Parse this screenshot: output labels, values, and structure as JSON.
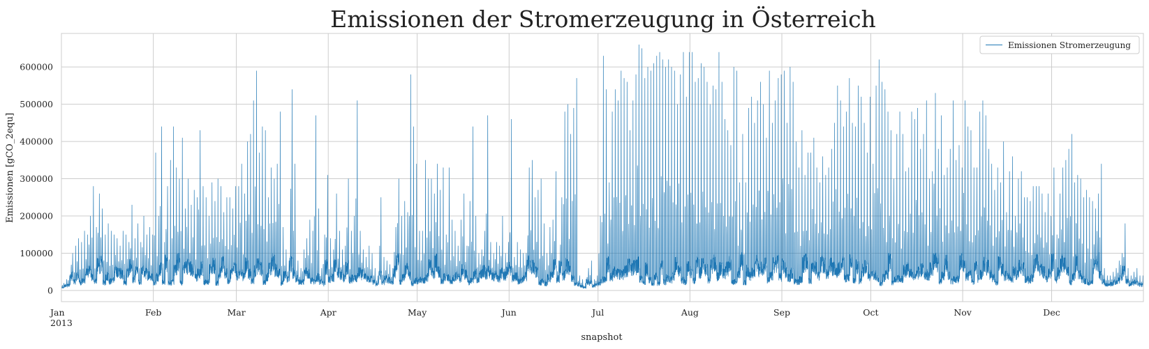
{
  "chart_data": {
    "type": "line",
    "title": "Emissionen der Stromerzeugung in Österreich",
    "xlabel": "snapshot",
    "ylabel": "Emissionen [gCO_2equ]",
    "x_range": [
      "2013-01-01",
      "2013-12-31"
    ],
    "ylim": [
      -30000,
      690000
    ],
    "y_ticks": [
      0,
      100000,
      200000,
      300000,
      400000,
      500000,
      600000
    ],
    "x_ticks": [
      {
        "date": "2013-01-01",
        "label": "Jan",
        "sublabel": "2013"
      },
      {
        "date": "2013-02-01",
        "label": "Feb"
      },
      {
        "date": "2013-03-01",
        "label": "Mar"
      },
      {
        "date": "2013-04-01",
        "label": "Apr"
      },
      {
        "date": "2013-05-01",
        "label": "May"
      },
      {
        "date": "2013-06-01",
        "label": "Jun"
      },
      {
        "date": "2013-07-01",
        "label": "Jul"
      },
      {
        "date": "2013-08-01",
        "label": "Aug"
      },
      {
        "date": "2013-09-01",
        "label": "Sep"
      },
      {
        "date": "2013-10-01",
        "label": "Oct"
      },
      {
        "date": "2013-11-01",
        "label": "Nov"
      },
      {
        "date": "2013-12-01",
        "label": "Dec"
      }
    ],
    "grid": true,
    "legend_position": "top-right",
    "series": [
      {
        "name": "Emissionen Stromerzeugung",
        "color": "#1f77b4",
        "resolution": "hourly",
        "daily_peaks": [
          [
            20000,
            30000,
            40000,
            100000,
            120000,
            140000,
            130000,
            160000,
            150000,
            200000,
            280000,
            170000,
            260000,
            220000,
            150000,
            180000,
            160000,
            150000,
            140000,
            120000,
            160000,
            150000,
            130000,
            230000,
            140000,
            180000,
            130000,
            200000,
            150000,
            170000,
            150000
          ],
          [
            370000,
            200000,
            440000,
            130000,
            280000,
            350000,
            440000,
            330000,
            300000,
            410000,
            220000,
            300000,
            230000,
            270000,
            250000,
            430000,
            280000,
            250000,
            200000,
            290000,
            240000,
            300000,
            280000,
            210000,
            250000,
            250000,
            220000,
            280000
          ],
          [
            280000,
            340000,
            260000,
            400000,
            420000,
            510000,
            590000,
            370000,
            440000,
            430000,
            250000,
            330000,
            300000,
            340000,
            480000,
            170000,
            110000,
            80000,
            540000,
            340000,
            80000,
            60000,
            110000,
            140000,
            190000,
            160000,
            470000,
            220000,
            60000,
            150000,
            310000
          ],
          [
            140000,
            110000,
            260000,
            160000,
            110000,
            120000,
            300000,
            160000,
            200000,
            510000,
            160000,
            110000,
            90000,
            120000,
            100000,
            60000,
            40000,
            250000,
            90000,
            80000,
            70000,
            60000,
            170000,
            300000,
            200000,
            240000,
            210000,
            580000,
            440000,
            340000
          ],
          [
            160000,
            160000,
            350000,
            300000,
            300000,
            260000,
            340000,
            270000,
            330000,
            150000,
            330000,
            190000,
            160000,
            120000,
            190000,
            260000,
            120000,
            240000,
            440000,
            200000,
            100000,
            110000,
            160000,
            470000,
            130000,
            100000,
            130000,
            120000,
            200000,
            100000,
            130000
          ],
          [
            460000,
            90000,
            130000,
            110000,
            100000,
            100000,
            330000,
            350000,
            250000,
            270000,
            300000,
            180000,
            100000,
            170000,
            190000,
            320000,
            80000,
            250000,
            480000,
            500000,
            420000,
            490000,
            570000,
            40000,
            30000,
            20000,
            60000,
            80000,
            30000,
            40000
          ],
          [
            200000,
            630000,
            540000,
            290000,
            480000,
            540000,
            510000,
            590000,
            570000,
            560000,
            430000,
            510000,
            580000,
            660000,
            650000,
            570000,
            600000,
            590000,
            610000,
            630000,
            640000,
            620000,
            600000,
            620000,
            600000,
            590000,
            500000,
            580000,
            640000,
            520000,
            640000
          ],
          [
            640000,
            560000,
            570000,
            610000,
            600000,
            560000,
            500000,
            550000,
            540000,
            640000,
            560000,
            460000,
            430000,
            390000,
            600000,
            590000,
            290000,
            420000,
            290000,
            490000,
            520000,
            450000,
            510000,
            560000,
            500000,
            410000,
            590000,
            450000,
            510000,
            570000,
            580000
          ],
          [
            590000,
            450000,
            600000,
            560000,
            400000,
            330000,
            430000,
            310000,
            370000,
            370000,
            410000,
            330000,
            290000,
            360000,
            310000,
            330000,
            380000,
            450000,
            550000,
            510000,
            440000,
            480000,
            570000,
            450000,
            440000,
            550000,
            520000,
            450000,
            370000,
            520000
          ],
          [
            340000,
            550000,
            620000,
            560000,
            540000,
            480000,
            430000,
            300000,
            420000,
            480000,
            420000,
            320000,
            330000,
            480000,
            460000,
            490000,
            380000,
            420000,
            510000,
            300000,
            320000,
            530000,
            380000,
            470000,
            310000,
            330000,
            380000,
            510000,
            350000,
            390000,
            330000
          ],
          [
            510000,
            440000,
            430000,
            330000,
            330000,
            480000,
            510000,
            470000,
            380000,
            340000,
            270000,
            330000,
            290000,
            400000,
            210000,
            320000,
            360000,
            200000,
            300000,
            320000,
            250000,
            250000,
            240000,
            280000,
            280000,
            280000,
            260000,
            210000,
            260000,
            200000
          ],
          [
            330000,
            150000,
            260000,
            330000,
            350000,
            380000,
            420000,
            290000,
            310000,
            300000,
            250000,
            270000,
            250000,
            240000,
            220000,
            260000,
            340000,
            60000,
            40000,
            40000,
            50000,
            60000,
            80000,
            100000,
            180000,
            60000,
            40000,
            50000,
            60000,
            40000,
            40000
          ]
        ]
      }
    ]
  }
}
